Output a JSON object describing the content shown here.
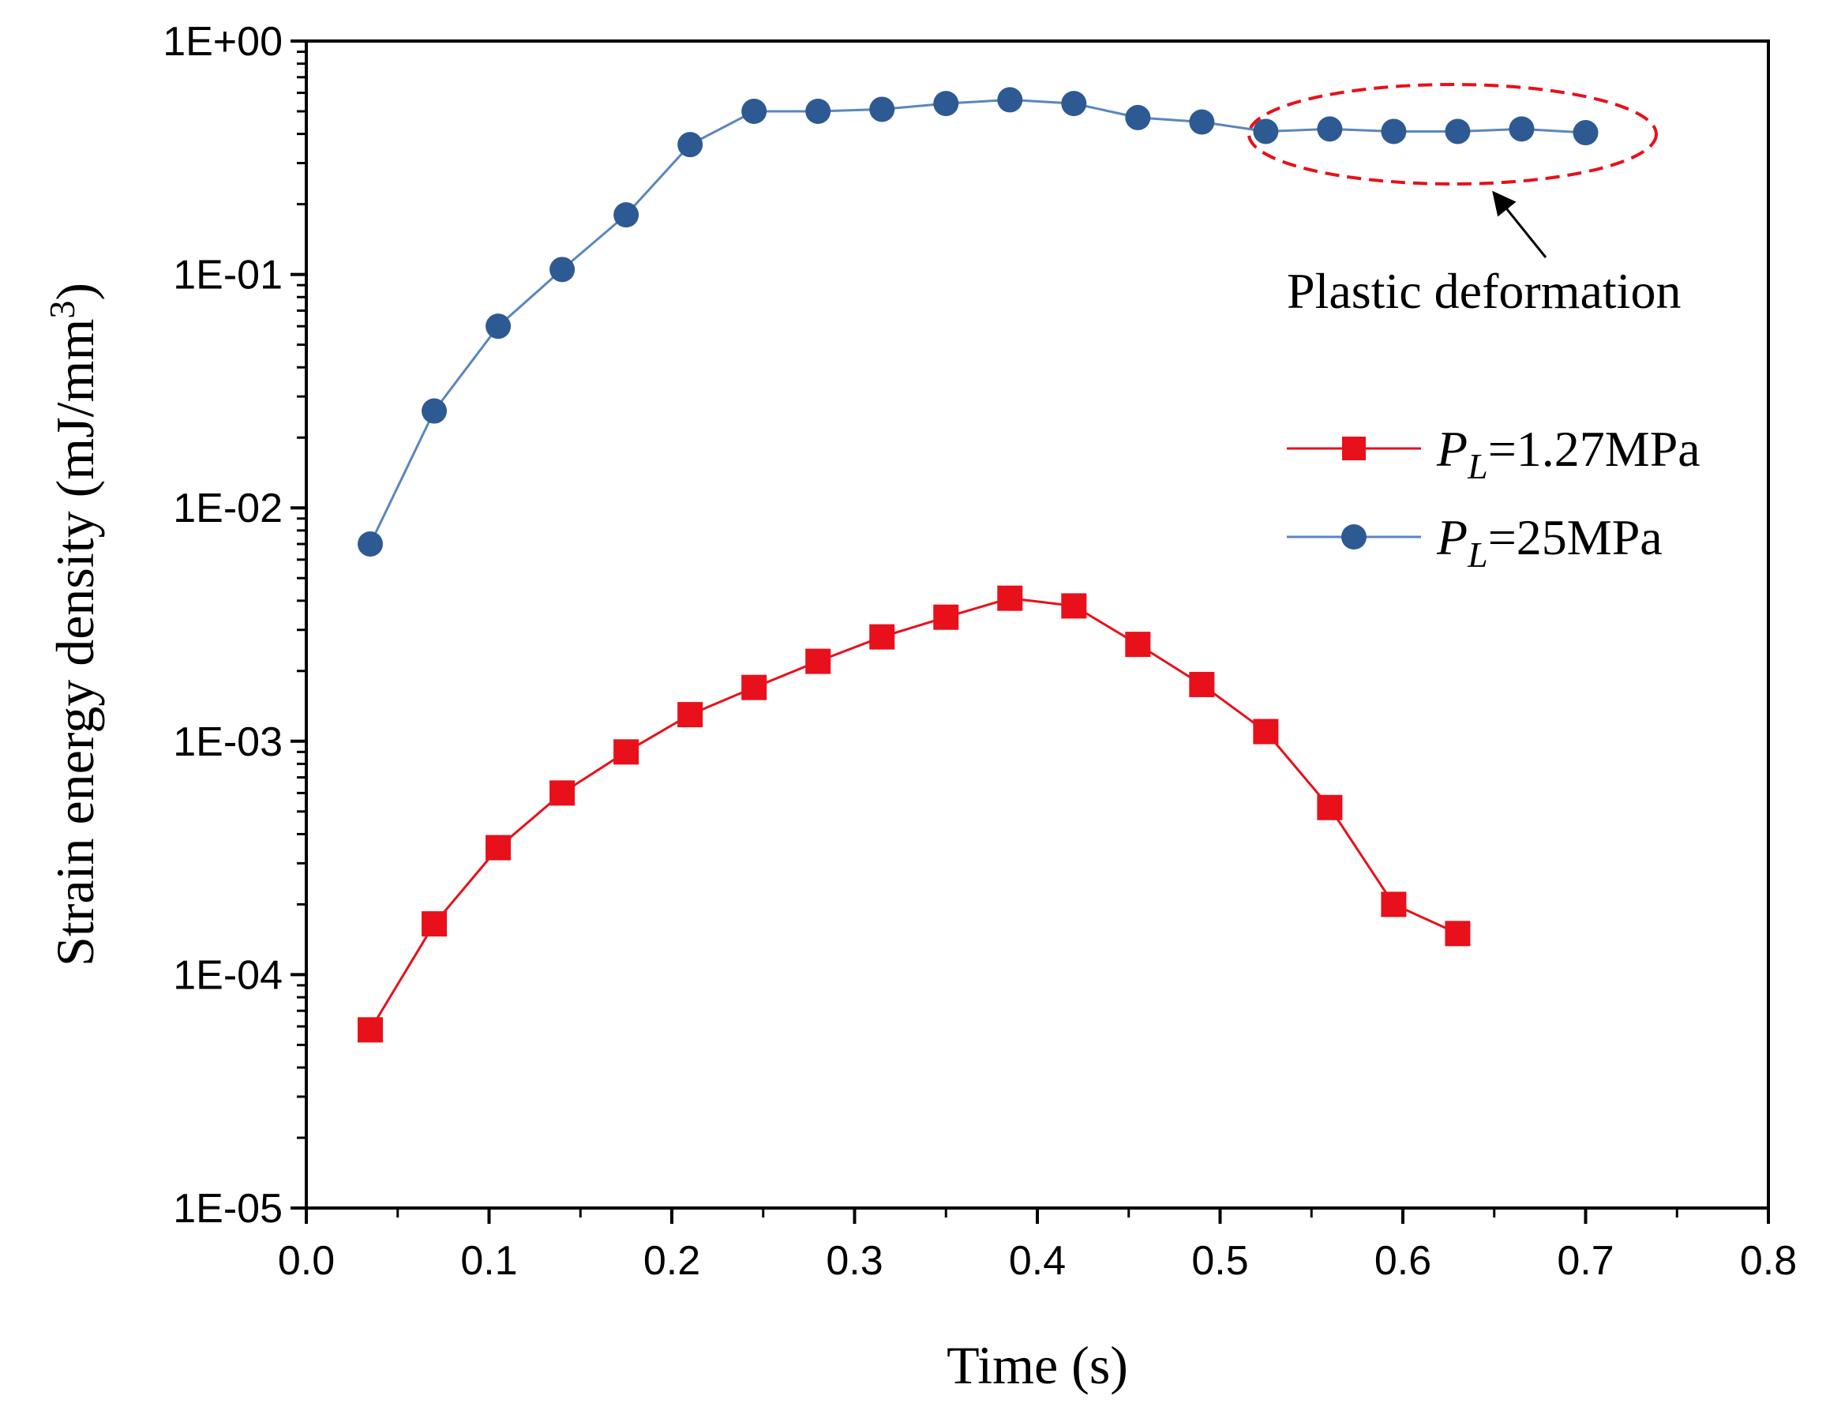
{
  "chart_data": {
    "type": "line",
    "xlabel": "Time (s)",
    "ylabel": "Strain energy density (mJ/mm",
    "ylabel_sup": "3",
    "ylabel_close": ")",
    "x_scale": "linear",
    "y_scale": "log",
    "xlim": [
      0.0,
      0.8
    ],
    "ylim": [
      1e-05,
      1
    ],
    "x_ticks": [
      0.0,
      0.1,
      0.2,
      0.3,
      0.4,
      0.5,
      0.6,
      0.7,
      0.8
    ],
    "x_tick_labels": [
      "0.0",
      "0.1",
      "0.2",
      "0.3",
      "0.4",
      "0.5",
      "0.6",
      "0.7",
      "0.8"
    ],
    "y_ticks": [
      1,
      0.1,
      0.01,
      0.001,
      0.0001,
      1e-05
    ],
    "y_tick_labels": [
      "1E+00",
      "1E-01",
      "1E-02",
      "1E-03",
      "1E-04",
      "1E-05"
    ],
    "legend_position": "center-right",
    "series": [
      {
        "name": "P_L=1.27MPa",
        "label_main": "P",
        "label_sub": "L",
        "label_rest": "=1.27MPa",
        "marker": "square",
        "color": "#E8101A",
        "x": [
          0.035,
          0.07,
          0.105,
          0.14,
          0.175,
          0.21,
          0.245,
          0.28,
          0.315,
          0.35,
          0.385,
          0.42,
          0.455,
          0.49,
          0.525,
          0.56,
          0.595,
          0.63
        ],
        "y": [
          5.8e-05,
          0.000165,
          0.00035,
          0.0006,
          0.0009,
          0.0013,
          0.0017,
          0.0022,
          0.0028,
          0.0034,
          0.0041,
          0.0038,
          0.0026,
          0.00175,
          0.0011,
          0.00052,
          0.0002,
          0.00015
        ]
      },
      {
        "name": "P_L=25MPa",
        "label_main": "P",
        "label_sub": "L",
        "label_rest": "=25MPa",
        "marker": "circle",
        "color": "#2E5A93",
        "line_color": "#5B86BD",
        "x": [
          0.035,
          0.07,
          0.105,
          0.14,
          0.175,
          0.21,
          0.245,
          0.28,
          0.315,
          0.35,
          0.385,
          0.42,
          0.455,
          0.49,
          0.525,
          0.56,
          0.595,
          0.63,
          0.665,
          0.7
        ],
        "y": [
          0.007,
          0.026,
          0.06,
          0.105,
          0.18,
          0.36,
          0.5,
          0.5,
          0.51,
          0.54,
          0.56,
          0.54,
          0.47,
          0.45,
          0.41,
          0.42,
          0.41,
          0.41,
          0.42,
          0.405
        ]
      }
    ],
    "annotations": [
      {
        "text": "Plastic deformation",
        "target": "P_L=25MPa points from 0.525 s to 0.7 s",
        "style": "red dashed ellipse with arrow"
      }
    ]
  }
}
